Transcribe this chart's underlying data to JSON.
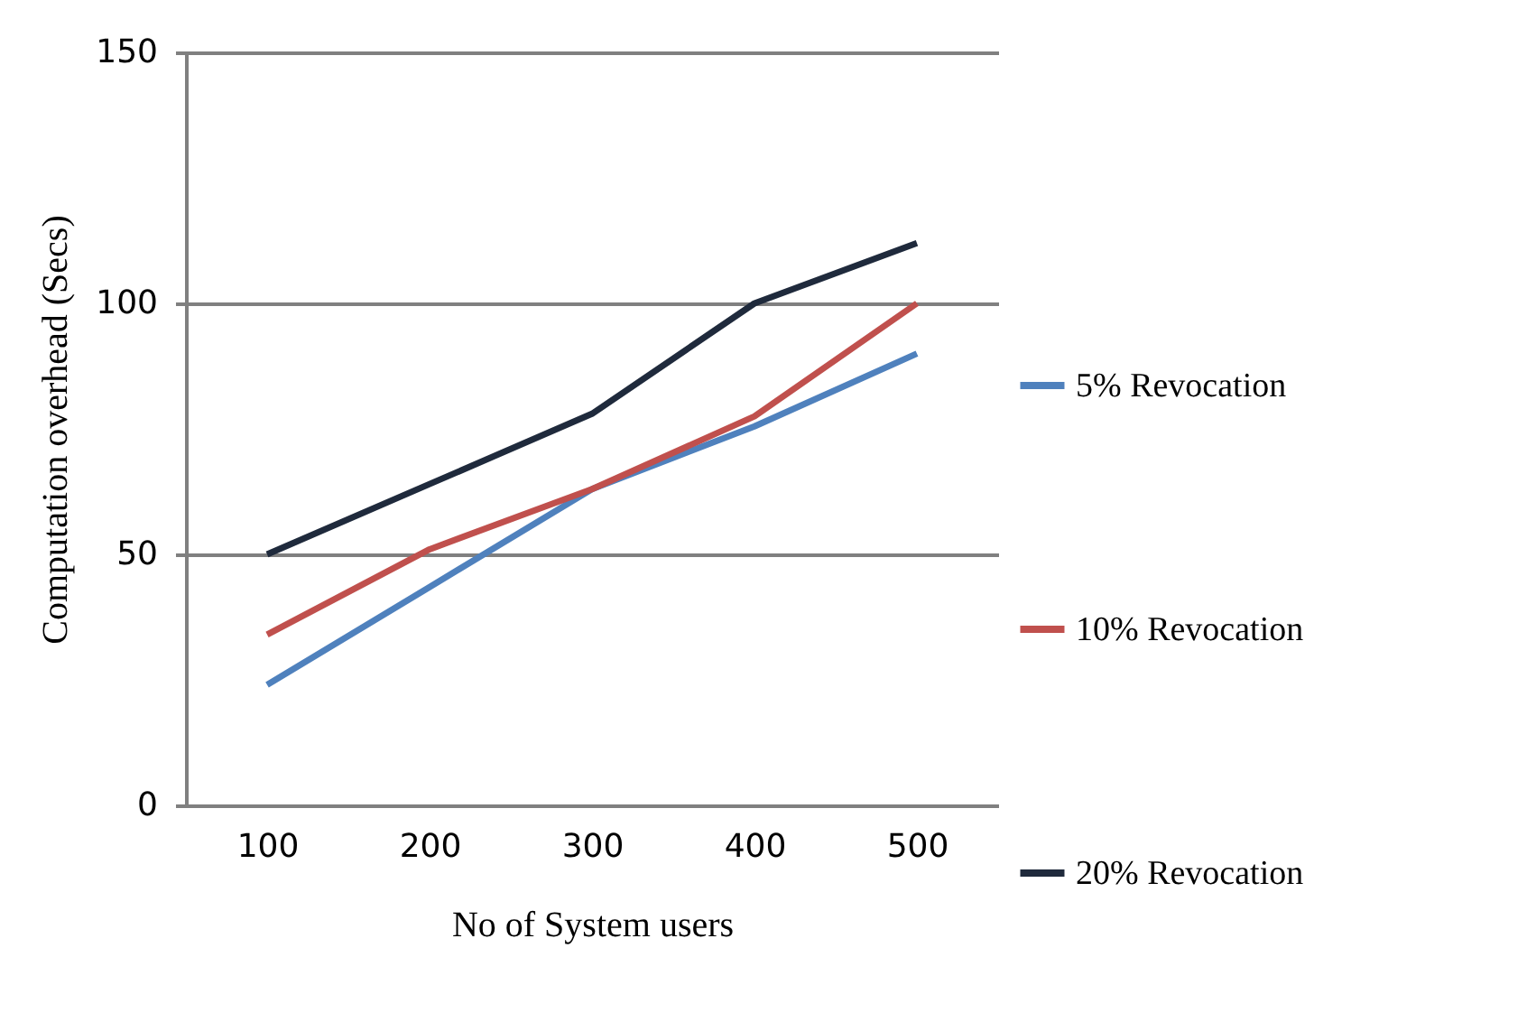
{
  "chart_data": {
    "type": "line",
    "xlabel": "No of System users",
    "ylabel": "Computation overhead (Secs)",
    "categories": [
      "100",
      "200",
      "300",
      "400",
      "500"
    ],
    "series": [
      {
        "name": "5% Revocation",
        "color": "#4f81bd",
        "values": [
          24,
          43.5,
          63,
          75.5,
          90
        ]
      },
      {
        "name": "10% Revocation",
        "color": "#c0504d",
        "values": [
          34,
          51,
          63,
          77.5,
          100
        ]
      },
      {
        "name": "20% Revocation",
        "color": "#1f2a3c",
        "values": [
          50,
          64,
          78,
          100,
          112
        ]
      }
    ],
    "ylim": [
      0,
      150
    ],
    "yticks": [
      0,
      50,
      100,
      150
    ],
    "grid": "y",
    "legend": "right",
    "marker": "none",
    "line_style": "solid"
  }
}
